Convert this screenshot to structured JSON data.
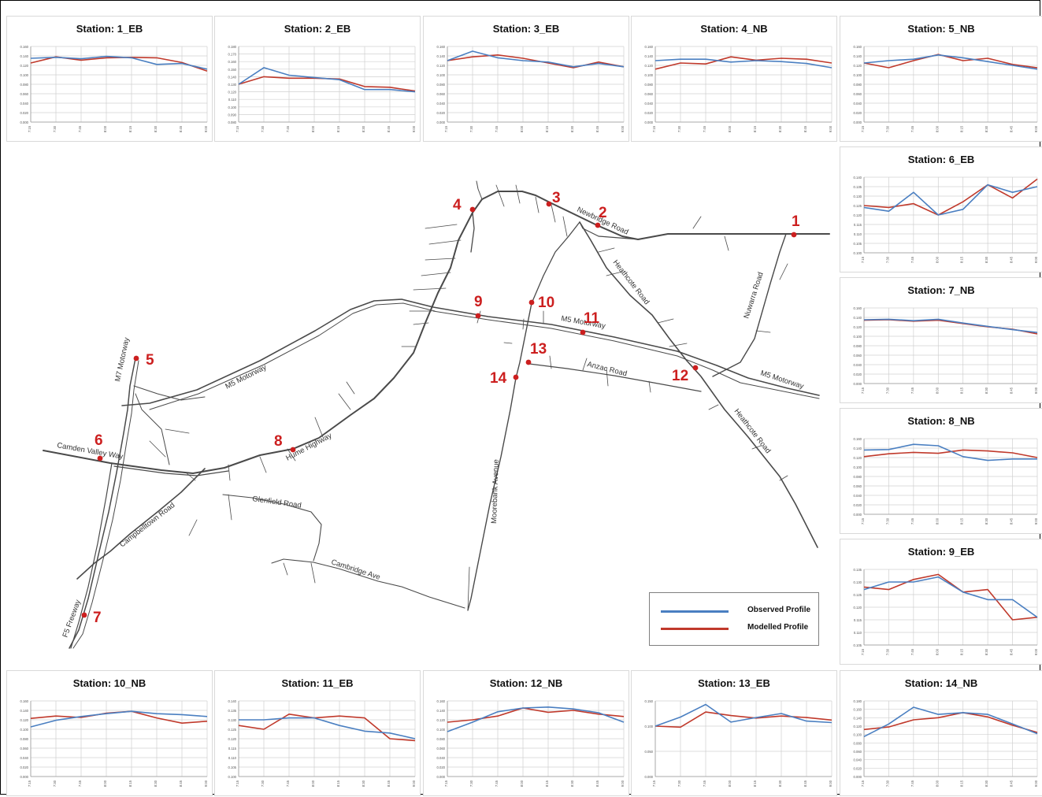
{
  "colors": {
    "observed": "#4a7fc1",
    "modelled": "#c0392b",
    "station_marker": "#cc1f1f",
    "road": "#4a4a4a"
  },
  "legend": {
    "observed_label": "Observed Profile",
    "modelled_label": "Modelled Profile"
  },
  "chart_data": [
    {
      "type": "line",
      "title": "Station: 1_EB",
      "x": [
        "7:15",
        "7:30",
        "7:45",
        "8:00",
        "8:15",
        "8:30",
        "8:45",
        "9:00"
      ],
      "ylim": [
        0,
        0.16
      ],
      "yticks": [
        "0.000",
        "0.020",
        "0.040",
        "0.060",
        "0.080",
        "0.100",
        "0.120",
        "0.140",
        "0.160"
      ],
      "series": [
        {
          "name": "Observed Profile",
          "values": [
            0.135,
            0.137,
            0.134,
            0.139,
            0.136,
            0.122,
            0.124,
            0.112
          ]
        },
        {
          "name": "Modelled Profile",
          "values": [
            0.125,
            0.138,
            0.131,
            0.136,
            0.137,
            0.136,
            0.126,
            0.108
          ]
        }
      ]
    },
    {
      "type": "line",
      "title": "Station: 2_EB",
      "x": [
        "7:15",
        "7:30",
        "7:45",
        "8:00",
        "8:15",
        "8:30",
        "8:45",
        "9:00"
      ],
      "ylim": [
        0.08,
        0.18
      ],
      "yticks": [
        "0.080",
        "0.090",
        "0.100",
        "0.110",
        "0.120",
        "0.130",
        "0.140",
        "0.150",
        "0.160",
        "0.170",
        "0.180"
      ],
      "series": [
        {
          "name": "Observed Profile",
          "values": [
            0.13,
            0.152,
            0.142,
            0.139,
            0.136,
            0.123,
            0.123,
            0.12
          ]
        },
        {
          "name": "Modelled Profile",
          "values": [
            0.13,
            0.14,
            0.138,
            0.138,
            0.137,
            0.127,
            0.126,
            0.121
          ]
        }
      ]
    },
    {
      "type": "line",
      "title": "Station: 3_EB",
      "x": [
        "7:15",
        "7:30",
        "7:45",
        "8:00",
        "8:15",
        "8:30",
        "8:45",
        "9:00"
      ],
      "ylim": [
        0,
        0.16
      ],
      "yticks": [
        "0.000",
        "0.020",
        "0.040",
        "0.060",
        "0.080",
        "0.100",
        "0.120",
        "0.140",
        "0.160"
      ],
      "series": [
        {
          "name": "Observed Profile",
          "values": [
            0.13,
            0.15,
            0.136,
            0.13,
            0.127,
            0.117,
            0.124,
            0.117
          ]
        },
        {
          "name": "Modelled Profile",
          "values": [
            0.13,
            0.138,
            0.142,
            0.135,
            0.125,
            0.115,
            0.127,
            0.117
          ]
        }
      ]
    },
    {
      "type": "line",
      "title": "Station: 4_NB",
      "x": [
        "7:15",
        "7:30",
        "7:45",
        "8:00",
        "8:15",
        "8:30",
        "8:45",
        "9:00"
      ],
      "ylim": [
        0,
        0.16
      ],
      "yticks": [
        "0.000",
        "0.020",
        "0.040",
        "0.060",
        "0.080",
        "0.100",
        "0.120",
        "0.140",
        "0.160"
      ],
      "series": [
        {
          "name": "Observed Profile",
          "values": [
            0.13,
            0.133,
            0.133,
            0.127,
            0.13,
            0.128,
            0.124,
            0.115
          ]
        },
        {
          "name": "Modelled Profile",
          "values": [
            0.112,
            0.125,
            0.123,
            0.138,
            0.131,
            0.135,
            0.133,
            0.125
          ]
        }
      ]
    },
    {
      "type": "line",
      "title": "Station: 5_NB",
      "x": [
        "7:15",
        "7:30",
        "7:45",
        "8:00",
        "8:15",
        "8:30",
        "8:45",
        "9:00"
      ],
      "ylim": [
        0,
        0.16
      ],
      "yticks": [
        "0.000",
        "0.020",
        "0.040",
        "0.060",
        "0.080",
        "0.100",
        "0.120",
        "0.140",
        "0.160"
      ],
      "series": [
        {
          "name": "Observed Profile",
          "values": [
            0.125,
            0.13,
            0.133,
            0.142,
            0.136,
            0.128,
            0.12,
            0.112
          ]
        },
        {
          "name": "Modelled Profile",
          "values": [
            0.125,
            0.115,
            0.13,
            0.143,
            0.13,
            0.135,
            0.122,
            0.115
          ]
        }
      ]
    },
    {
      "type": "line",
      "title": "Station: 6_EB",
      "x": [
        "7:15",
        "7:30",
        "7:45",
        "8:00",
        "8:15",
        "8:30",
        "8:45",
        "9:00"
      ],
      "ylim": [
        0.1,
        0.14
      ],
      "yticks": [
        "0.100",
        "0.105",
        "0.110",
        "0.115",
        "0.120",
        "0.125",
        "0.130",
        "0.135",
        "0.140"
      ],
      "series": [
        {
          "name": "Observed Profile",
          "values": [
            0.124,
            0.122,
            0.132,
            0.12,
            0.123,
            0.136,
            0.132,
            0.135
          ]
        },
        {
          "name": "Modelled Profile",
          "values": [
            0.125,
            0.124,
            0.126,
            0.12,
            0.127,
            0.136,
            0.129,
            0.139
          ]
        }
      ]
    },
    {
      "type": "line",
      "title": "Station: 7_NB",
      "x": [
        "7:15",
        "7:30",
        "7:45",
        "8:00",
        "8:15",
        "8:30",
        "8:45",
        "9:00"
      ],
      "ylim": [
        0,
        0.16
      ],
      "yticks": [
        "0.000",
        "0.020",
        "0.040",
        "0.060",
        "0.080",
        "0.100",
        "0.120",
        "0.140",
        "0.160"
      ],
      "series": [
        {
          "name": "Observed Profile",
          "values": [
            0.135,
            0.136,
            0.133,
            0.136,
            0.128,
            0.121,
            0.114,
            0.108
          ]
        },
        {
          "name": "Modelled Profile",
          "values": [
            0.134,
            0.135,
            0.132,
            0.134,
            0.127,
            0.12,
            0.115,
            0.105
          ]
        }
      ]
    },
    {
      "type": "line",
      "title": "Station: 8_NB",
      "x": [
        "7:15",
        "7:30",
        "7:45",
        "8:00",
        "8:15",
        "8:30",
        "8:45",
        "9:00"
      ],
      "ylim": [
        0,
        0.16
      ],
      "yticks": [
        "0.000",
        "0.020",
        "0.040",
        "0.060",
        "0.080",
        "0.100",
        "0.120",
        "0.140",
        "0.160"
      ],
      "series": [
        {
          "name": "Observed Profile",
          "values": [
            0.136,
            0.137,
            0.148,
            0.145,
            0.122,
            0.114,
            0.117,
            0.117
          ]
        },
        {
          "name": "Modelled Profile",
          "values": [
            0.122,
            0.128,
            0.131,
            0.129,
            0.136,
            0.134,
            0.13,
            0.12
          ]
        }
      ]
    },
    {
      "type": "line",
      "title": "Station: 9_EB",
      "x": [
        "7:15",
        "7:30",
        "7:45",
        "8:00",
        "8:15",
        "8:30",
        "8:45",
        "9:00"
      ],
      "ylim": [
        0.105,
        0.135
      ],
      "yticks": [
        "0.105",
        "0.110",
        "0.115",
        "0.120",
        "0.125",
        "0.130",
        "0.135"
      ],
      "series": [
        {
          "name": "Observed Profile",
          "values": [
            0.127,
            0.13,
            0.13,
            0.132,
            0.126,
            0.123,
            0.123,
            0.116
          ]
        },
        {
          "name": "Modelled Profile",
          "values": [
            0.128,
            0.127,
            0.131,
            0.133,
            0.126,
            0.127,
            0.115,
            0.116
          ]
        }
      ]
    },
    {
      "type": "line",
      "title": "Station: 10_NB",
      "x": [
        "7:15",
        "7:30",
        "7:45",
        "8:00",
        "8:15",
        "8:30",
        "8:45",
        "9:00"
      ],
      "ylim": [
        0,
        0.16
      ],
      "yticks": [
        "0.000",
        "0.020",
        "0.040",
        "0.060",
        "0.080",
        "0.100",
        "0.120",
        "0.140",
        "0.160"
      ],
      "series": [
        {
          "name": "Observed Profile",
          "values": [
            0.105,
            0.119,
            0.127,
            0.133,
            0.138,
            0.133,
            0.131,
            0.127
          ]
        },
        {
          "name": "Modelled Profile",
          "values": [
            0.123,
            0.128,
            0.125,
            0.134,
            0.138,
            0.124,
            0.113,
            0.117
          ]
        }
      ]
    },
    {
      "type": "line",
      "title": "Station: 11_EB",
      "x": [
        "7:15",
        "7:30",
        "7:45",
        "8:00",
        "8:15",
        "8:30",
        "8:45",
        "9:00"
      ],
      "ylim": [
        0.1,
        0.14
      ],
      "yticks": [
        "0.100",
        "0.105",
        "0.110",
        "0.115",
        "0.120",
        "0.125",
        "0.130",
        "0.135",
        "0.140"
      ],
      "series": [
        {
          "name": "Observed Profile",
          "values": [
            0.13,
            0.13,
            0.131,
            0.131,
            0.127,
            0.124,
            0.123,
            0.12
          ]
        },
        {
          "name": "Modelled Profile",
          "values": [
            0.127,
            0.125,
            0.133,
            0.131,
            0.132,
            0.131,
            0.12,
            0.119
          ]
        }
      ]
    },
    {
      "type": "line",
      "title": "Station: 12_NB",
      "x": [
        "7:15",
        "7:30",
        "7:45",
        "8:00",
        "8:15",
        "8:30",
        "8:45",
        "9:00"
      ],
      "ylim": [
        0,
        0.16
      ],
      "yticks": [
        "0.000",
        "0.020",
        "0.040",
        "0.060",
        "0.080",
        "0.100",
        "0.120",
        "0.140",
        "0.160"
      ],
      "series": [
        {
          "name": "Observed Profile",
          "values": [
            0.095,
            0.115,
            0.137,
            0.145,
            0.147,
            0.143,
            0.135,
            0.115
          ]
        },
        {
          "name": "Modelled Profile",
          "values": [
            0.115,
            0.12,
            0.128,
            0.145,
            0.136,
            0.14,
            0.132,
            0.127
          ]
        }
      ]
    },
    {
      "type": "line",
      "title": "Station: 13_EB",
      "x": [
        "7:15",
        "7:30",
        "7:45",
        "8:00",
        "8:15",
        "8:30",
        "8:45",
        "9:00"
      ],
      "ylim": [
        0,
        0.15
      ],
      "yticks": [
        "0.000",
        "0.050",
        "0.100",
        "0.150"
      ],
      "series": [
        {
          "name": "Observed Profile",
          "values": [
            0.1,
            0.118,
            0.143,
            0.108,
            0.117,
            0.125,
            0.11,
            0.107
          ]
        },
        {
          "name": "Modelled Profile",
          "values": [
            0.1,
            0.098,
            0.128,
            0.121,
            0.116,
            0.12,
            0.117,
            0.112
          ]
        }
      ]
    },
    {
      "type": "line",
      "title": "Station: 14_NB",
      "x": [
        "7:15",
        "7:30",
        "7:45",
        "8:00",
        "8:15",
        "8:30",
        "8:45",
        "9:00"
      ],
      "ylim": [
        0,
        0.18
      ],
      "yticks": [
        "0.000",
        "0.020",
        "0.040",
        "0.060",
        "0.080",
        "0.100",
        "0.120",
        "0.140",
        "0.160",
        "0.180"
      ],
      "series": [
        {
          "name": "Observed Profile",
          "values": [
            0.095,
            0.125,
            0.165,
            0.148,
            0.152,
            0.148,
            0.125,
            0.102
          ]
        },
        {
          "name": "Modelled Profile",
          "values": [
            0.112,
            0.118,
            0.135,
            0.14,
            0.152,
            0.142,
            0.122,
            0.105
          ]
        }
      ]
    }
  ],
  "map": {
    "road_labels": [
      "Newbridge Road",
      "Heathcote Road",
      "Nuwarra Road",
      "M5 Motorway",
      "M5 Motorway",
      "M5 Motorway",
      "Anzac Road",
      "Heathcote Road",
      "M7 Motorway",
      "Camden Valley Way",
      "Hume Highway",
      "Campbelltown Road",
      "Glenfield Road",
      "Cambridge Ave",
      "Moorebank Avenue",
      "F5 Freeway"
    ],
    "station_numbers": [
      "1",
      "2",
      "3",
      "4",
      "5",
      "6",
      "7",
      "8",
      "9",
      "10",
      "11",
      "12",
      "13",
      "14"
    ]
  }
}
